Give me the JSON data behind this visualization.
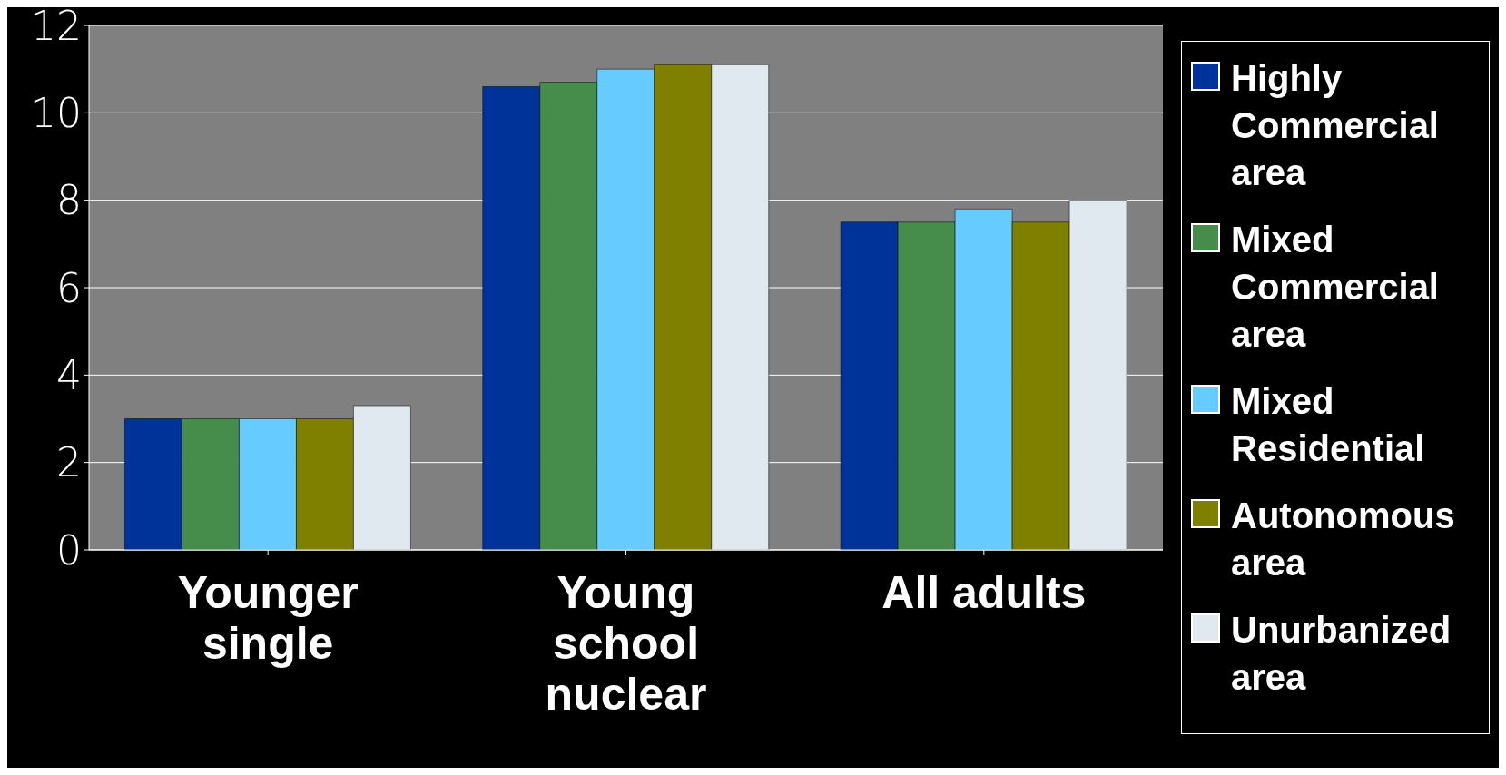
{
  "chart_data": {
    "type": "bar",
    "categories": [
      "Younger single",
      "Young school nuclear",
      "All adults"
    ],
    "series": [
      {
        "name": "Highly Commercial area",
        "color": "#003399",
        "values": [
          3.0,
          10.6,
          7.5
        ]
      },
      {
        "name": "Mixed Commercial area",
        "color": "#468c4b",
        "values": [
          3.0,
          10.7,
          7.5
        ]
      },
      {
        "name": "Mixed Residential",
        "color": "#66ccff",
        "values": [
          3.0,
          11.0,
          7.8
        ]
      },
      {
        "name": "Autonomous area",
        "color": "#808000",
        "values": [
          3.0,
          11.1,
          7.5
        ]
      },
      {
        "name": "Unurbanized area",
        "color": "#e0e8f0",
        "values": [
          3.3,
          11.1,
          8.0
        ]
      }
    ],
    "ylim": [
      0,
      12
    ],
    "yticks": [
      0,
      2,
      4,
      6,
      8,
      10,
      12
    ],
    "grid": "y",
    "legend": "right"
  }
}
